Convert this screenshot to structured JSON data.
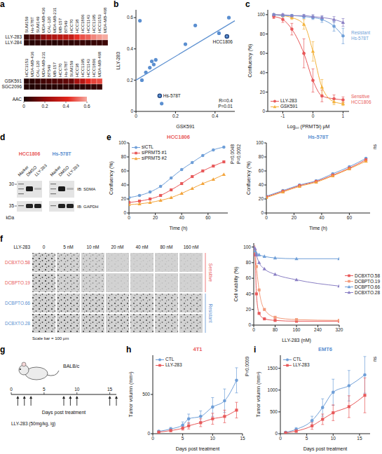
{
  "chart_data": [
    {
      "panel": "a",
      "type": "heatmap",
      "blocks": [
        {
          "columns": [
            "SUM159",
            "Hs-578T",
            "SUM149",
            "MDA-MB-436",
            "CAL-120",
            "MDA-MB-231",
            "MB-157",
            "BT549",
            "HCC70",
            "HCC38",
            "HCC1806",
            "HCC1143",
            "HCC1395",
            "HCC3153",
            "MDA-MB-468"
          ],
          "rows": [
            "LLY-283",
            "LLY-284"
          ],
          "cells": [
            [
              0.05,
              0.1,
              0.12,
              0.2,
              0.25,
              0.28,
              0.3,
              0.32,
              0.33,
              0.43,
              0.48,
              0.5,
              0.55,
              0.58,
              0.6
            ],
            [
              0.02,
              0.02,
              0.03,
              0.02,
              0.03,
              0.02,
              0.03,
              0.04,
              0.03,
              0.04,
              0.05,
              0.04,
              0.05,
              0.05,
              0.06
            ]
          ]
        },
        {
          "columns": [
            "HCC3153",
            "MDA-MB-436",
            "CAL-120",
            "MDA-MB-231",
            "BT549",
            "MB-157",
            "HCC70",
            "Hs-578T",
            "SUM159",
            "HCC38",
            "HCC1395",
            "HCC1143",
            "HCC1806",
            "MDA-MB-468"
          ],
          "rows": [
            "GSK591",
            "SGC2096"
          ],
          "cells": [
            [
              0.02,
              0.03,
              0.05,
              0.07,
              0.08,
              0.09,
              0.1,
              0.12,
              0.13,
              0.25,
              0.3,
              0.42,
              0.46,
              0.47
            ],
            [
              0.01,
              0.01,
              0.02,
              0.01,
              0.02,
              0.02,
              0.02,
              0.03,
              0.02,
              0.03,
              0.03,
              0.04,
              0.04,
              0.05
            ]
          ]
        }
      ],
      "colorbar": {
        "title": "AAC",
        "range": [
          0,
          0.6
        ],
        "ticks": [
          0,
          0.2,
          0.4,
          0.6
        ]
      }
    },
    {
      "panel": "b",
      "type": "scatter",
      "x_label": "GSK591",
      "y_label": "LLY-283",
      "x": [
        0.02,
        0.03,
        0.05,
        0.07,
        0.08,
        0.09,
        0.1,
        0.12,
        0.13,
        0.25,
        0.3,
        0.42,
        0.46,
        0.47
      ],
      "y": [
        0.58,
        0.2,
        0.25,
        0.28,
        0.32,
        0.3,
        0.33,
        0.1,
        0.05,
        0.43,
        0.55,
        0.5,
        0.48,
        0.6
      ],
      "point_labels": [
        null,
        null,
        null,
        null,
        null,
        null,
        null,
        "Hs-578T",
        null,
        null,
        null,
        null,
        "HCC1806",
        null
      ],
      "fit": {
        "x": [
          0,
          0.5
        ],
        "y": [
          0.2,
          0.58
        ]
      },
      "stats": [
        "R²=0.4",
        "P=0.01"
      ],
      "color": "#5b8fd0",
      "xlim": [
        0,
        0.5
      ],
      "xticks": [
        0,
        0.2,
        0.4
      ],
      "ylim": [
        0,
        0.65
      ],
      "yticks": [
        0,
        0.2,
        0.4,
        0.6
      ]
    },
    {
      "panel": "c",
      "type": "line",
      "x_label": "Log₁₀ (PRMT5i) μM",
      "y_label": "Confluency (%)",
      "x": [
        -1.3,
        -1,
        -0.7,
        -0.3,
        0,
        0.3,
        0.7,
        1
      ],
      "series": [
        {
          "name": "LLY-283",
          "group": "HCC1806",
          "color": "#e8595a",
          "marker": "circle",
          "values": [
            98,
            95,
            85,
            60,
            32,
            16,
            13,
            12
          ],
          "errors": [
            2,
            3,
            6,
            15,
            12,
            6,
            4,
            3
          ]
        },
        {
          "name": "GSK591",
          "group": "HCC1806",
          "color": "#f3b33d",
          "marker": "triangle",
          "values": [
            100,
            99,
            97,
            90,
            62,
            25,
            10,
            8
          ],
          "errors": [
            1,
            1,
            2,
            5,
            10,
            8,
            3,
            2
          ]
        },
        {
          "name": "LLY-283",
          "group": "Hs-578T",
          "color": "#6f9fd8",
          "marker": "circle",
          "values": [
            100,
            99,
            99,
            98,
            97,
            95,
            88,
            78
          ],
          "errors": [
            1,
            1,
            1,
            2,
            2,
            3,
            5,
            8
          ]
        },
        {
          "name": "GSK591",
          "group": "Hs-578T",
          "color": "#8a7fc4",
          "marker": "triangle",
          "values": [
            100,
            100,
            99,
            99,
            98,
            97,
            95,
            92
          ],
          "errors": [
            1,
            1,
            1,
            1,
            2,
            2,
            3,
            4
          ]
        }
      ],
      "group_labels": {
        "HCC1806": "Sensitive",
        "Hs-578T": "Resistant"
      },
      "legend": "lower left",
      "xlim": [
        -1.5,
        1.2
      ],
      "xticks": [
        -1,
        0,
        1
      ],
      "ylim": [
        0,
        105
      ],
      "yticks": [
        0,
        20,
        40,
        60,
        80,
        100
      ]
    },
    {
      "panel": "e",
      "type": "line",
      "title": "HCC1806",
      "x_label": "Time (h)",
      "y_label": "Confluency (%)",
      "x": [
        0,
        8,
        16,
        24,
        32,
        40,
        48,
        56,
        64,
        72
      ],
      "series": [
        {
          "name": "siCTL",
          "color": "#6f9fd8",
          "marker": "circle",
          "values": [
            22,
            25,
            30,
            38,
            50,
            62,
            72,
            82,
            90,
            94
          ]
        },
        {
          "name": "siPRMT5 #1",
          "color": "#e8595a",
          "marker": "square",
          "values": [
            15,
            17,
            20,
            25,
            33,
            42,
            52,
            60,
            67,
            73
          ]
        },
        {
          "name": "siPRMT5 #2",
          "color": "#f3a53d",
          "marker": "triangle",
          "values": [
            12,
            13,
            15,
            18,
            22,
            28,
            35,
            42,
            48,
            55
          ]
        }
      ],
      "legend": "upper left",
      "annotations": [
        "P=0.0048",
        "P=0.0002"
      ],
      "xlim": [
        0,
        75
      ],
      "xticks": [
        0,
        20,
        40,
        60
      ],
      "ylim": [
        0,
        100
      ],
      "yticks": [
        0,
        20,
        40,
        60,
        80,
        100
      ]
    },
    {
      "panel": "e",
      "type": "line",
      "title": "Hs-578T",
      "x_label": "Time (h)",
      "y_label": "Confluency (%)",
      "x": [
        0,
        12,
        24,
        36,
        48,
        60,
        72
      ],
      "series": [
        {
          "name": "siCTL",
          "color": "#6f9fd8",
          "marker": "circle",
          "values": [
            24,
            32,
            40,
            46,
            56,
            66,
            78
          ]
        },
        {
          "name": "siPRMT5 #1",
          "color": "#e8595a",
          "marker": "square",
          "values": [
            23,
            31,
            39,
            45,
            54,
            64,
            76
          ]
        },
        {
          "name": "siPRMT5 #2",
          "color": "#f3a53d",
          "marker": "triangle",
          "values": [
            22,
            30,
            38,
            44,
            53,
            63,
            74
          ]
        }
      ],
      "annotations": [
        "ns"
      ],
      "xlim": [
        0,
        75
      ],
      "xticks": [
        0,
        20,
        40,
        60
      ],
      "ylim": [
        0,
        100
      ],
      "yticks": [
        0,
        20,
        40,
        60,
        80,
        100
      ]
    },
    {
      "panel": "f",
      "type": "line",
      "x_label": "LLY-283 (nM)",
      "y_label": "Cell viability (%)",
      "x": [
        0,
        5,
        10,
        20,
        40,
        80,
        160,
        320
      ],
      "series": [
        {
          "name": "DCBXTO.58",
          "color": "#e8595a",
          "marker": "square",
          "values": [
            100,
            90,
            40,
            15,
            8,
            6,
            5,
            5
          ]
        },
        {
          "name": "DCBPTO.19",
          "color": "#f39a7a",
          "marker": "square",
          "values": [
            100,
            95,
            75,
            45,
            20,
            10,
            7,
            6
          ]
        },
        {
          "name": "DCBPTO.66",
          "color": "#6f9fd8",
          "marker": "triangle",
          "values": [
            100,
            95,
            92,
            90,
            88,
            86,
            85,
            85
          ]
        },
        {
          "name": "DCBXTO.28",
          "color": "#8a7fc4",
          "marker": "triangle",
          "values": [
            100,
            98,
            90,
            80,
            72,
            65,
            58,
            50
          ]
        }
      ],
      "legend": "right",
      "xlim": [
        0,
        320
      ],
      "xticks": [
        0,
        80,
        160,
        240,
        320
      ],
      "ylim": [
        0,
        105
      ],
      "yticks": [
        0,
        20,
        40,
        60,
        80,
        100
      ]
    },
    {
      "panel": "h",
      "type": "line",
      "title": "4T1",
      "x_label": "Days post treatment",
      "y_label": "Tumor volumn (mm³)",
      "x": [
        1,
        3,
        5,
        6,
        8,
        10,
        12,
        14
      ],
      "series": [
        {
          "name": "CTL",
          "color": "#6f9fd8",
          "marker": "circle",
          "values": [
            30,
            60,
            110,
            190,
            220,
            340,
            420,
            680
          ],
          "errors": [
            10,
            20,
            40,
            60,
            70,
            120,
            150,
            160
          ]
        },
        {
          "name": "LLY-283",
          "color": "#e8595a",
          "marker": "square",
          "values": [
            20,
            40,
            70,
            100,
            140,
            190,
            220,
            300
          ],
          "errors": [
            5,
            15,
            25,
            40,
            50,
            70,
            80,
            100
          ]
        }
      ],
      "legend": "upper left",
      "annotations": [
        "P=0.0009"
      ],
      "xlim": [
        0,
        15
      ],
      "xticks": [
        0,
        5,
        10,
        15
      ],
      "ylim": [
        0,
        1000
      ],
      "yticks": [
        0,
        500
      ]
    },
    {
      "panel": "i",
      "type": "line",
      "title": "EMT6",
      "x_label": "Days post treatment",
      "y_label": "Tumor volumn (mm³)",
      "x": [
        1,
        3,
        6,
        8,
        10,
        13,
        16
      ],
      "series": [
        {
          "name": "CTL",
          "color": "#6f9fd8",
          "marker": "circle",
          "values": [
            30,
            100,
            300,
            600,
            950,
            1100,
            1350
          ],
          "errors": [
            10,
            40,
            100,
            200,
            300,
            350,
            420
          ]
        },
        {
          "name": "LLY-283",
          "color": "#e8595a",
          "marker": "square",
          "values": [
            20,
            60,
            180,
            330,
            480,
            620,
            880
          ],
          "errors": [
            5,
            30,
            80,
            120,
            180,
            250,
            400
          ]
        }
      ],
      "legend": "upper left",
      "annotations": [
        "ns"
      ],
      "xlim": [
        0,
        17
      ],
      "xticks": [
        0,
        5,
        10,
        15
      ],
      "ylim": [
        0,
        1800
      ],
      "yticks": [
        0,
        500,
        1000,
        1500
      ]
    }
  ],
  "blot": {
    "panel": "d",
    "blots": [
      {
        "title": "HCC1806",
        "lanes": [
          "Marker",
          "DMSO",
          "LLY-283"
        ]
      },
      {
        "title": "Hs-578T",
        "lanes": [
          "Marker",
          "DMSO",
          "LLY-283"
        ]
      }
    ],
    "rows": [
      "IB: SDMA",
      "IB: GAPDH"
    ],
    "markers": [
      30,
      35
    ],
    "marker_unit": "kDa"
  },
  "images": {
    "panel": "f",
    "header": "LLY-283",
    "columns": [
      "0",
      "5 nM",
      "10 nM",
      "20 nM",
      "40 nM",
      "80 nM",
      "160 nM"
    ],
    "rows": [
      {
        "label": "DCBXTO.58",
        "group": "Sensitive"
      },
      {
        "label": "DCBPTO.19",
        "group": "Sensitive"
      },
      {
        "label": "DCBPTO.66",
        "group": "Resistant"
      },
      {
        "label": "DCBXTO.28",
        "group": "Resistant"
      }
    ],
    "scale_bar": "Scale bar = 100 μm"
  },
  "schematic": {
    "panel": "g",
    "strain": "BALB/c",
    "treatment": "LLY-283 (50mg/kg, ig)",
    "x_label": "Days post treatment",
    "xlim": [
      0,
      16
    ],
    "xticks": [
      0,
      5,
      10,
      15
    ],
    "dose_days": [
      1,
      2,
      3,
      8,
      9,
      10,
      15,
      16
    ]
  }
}
